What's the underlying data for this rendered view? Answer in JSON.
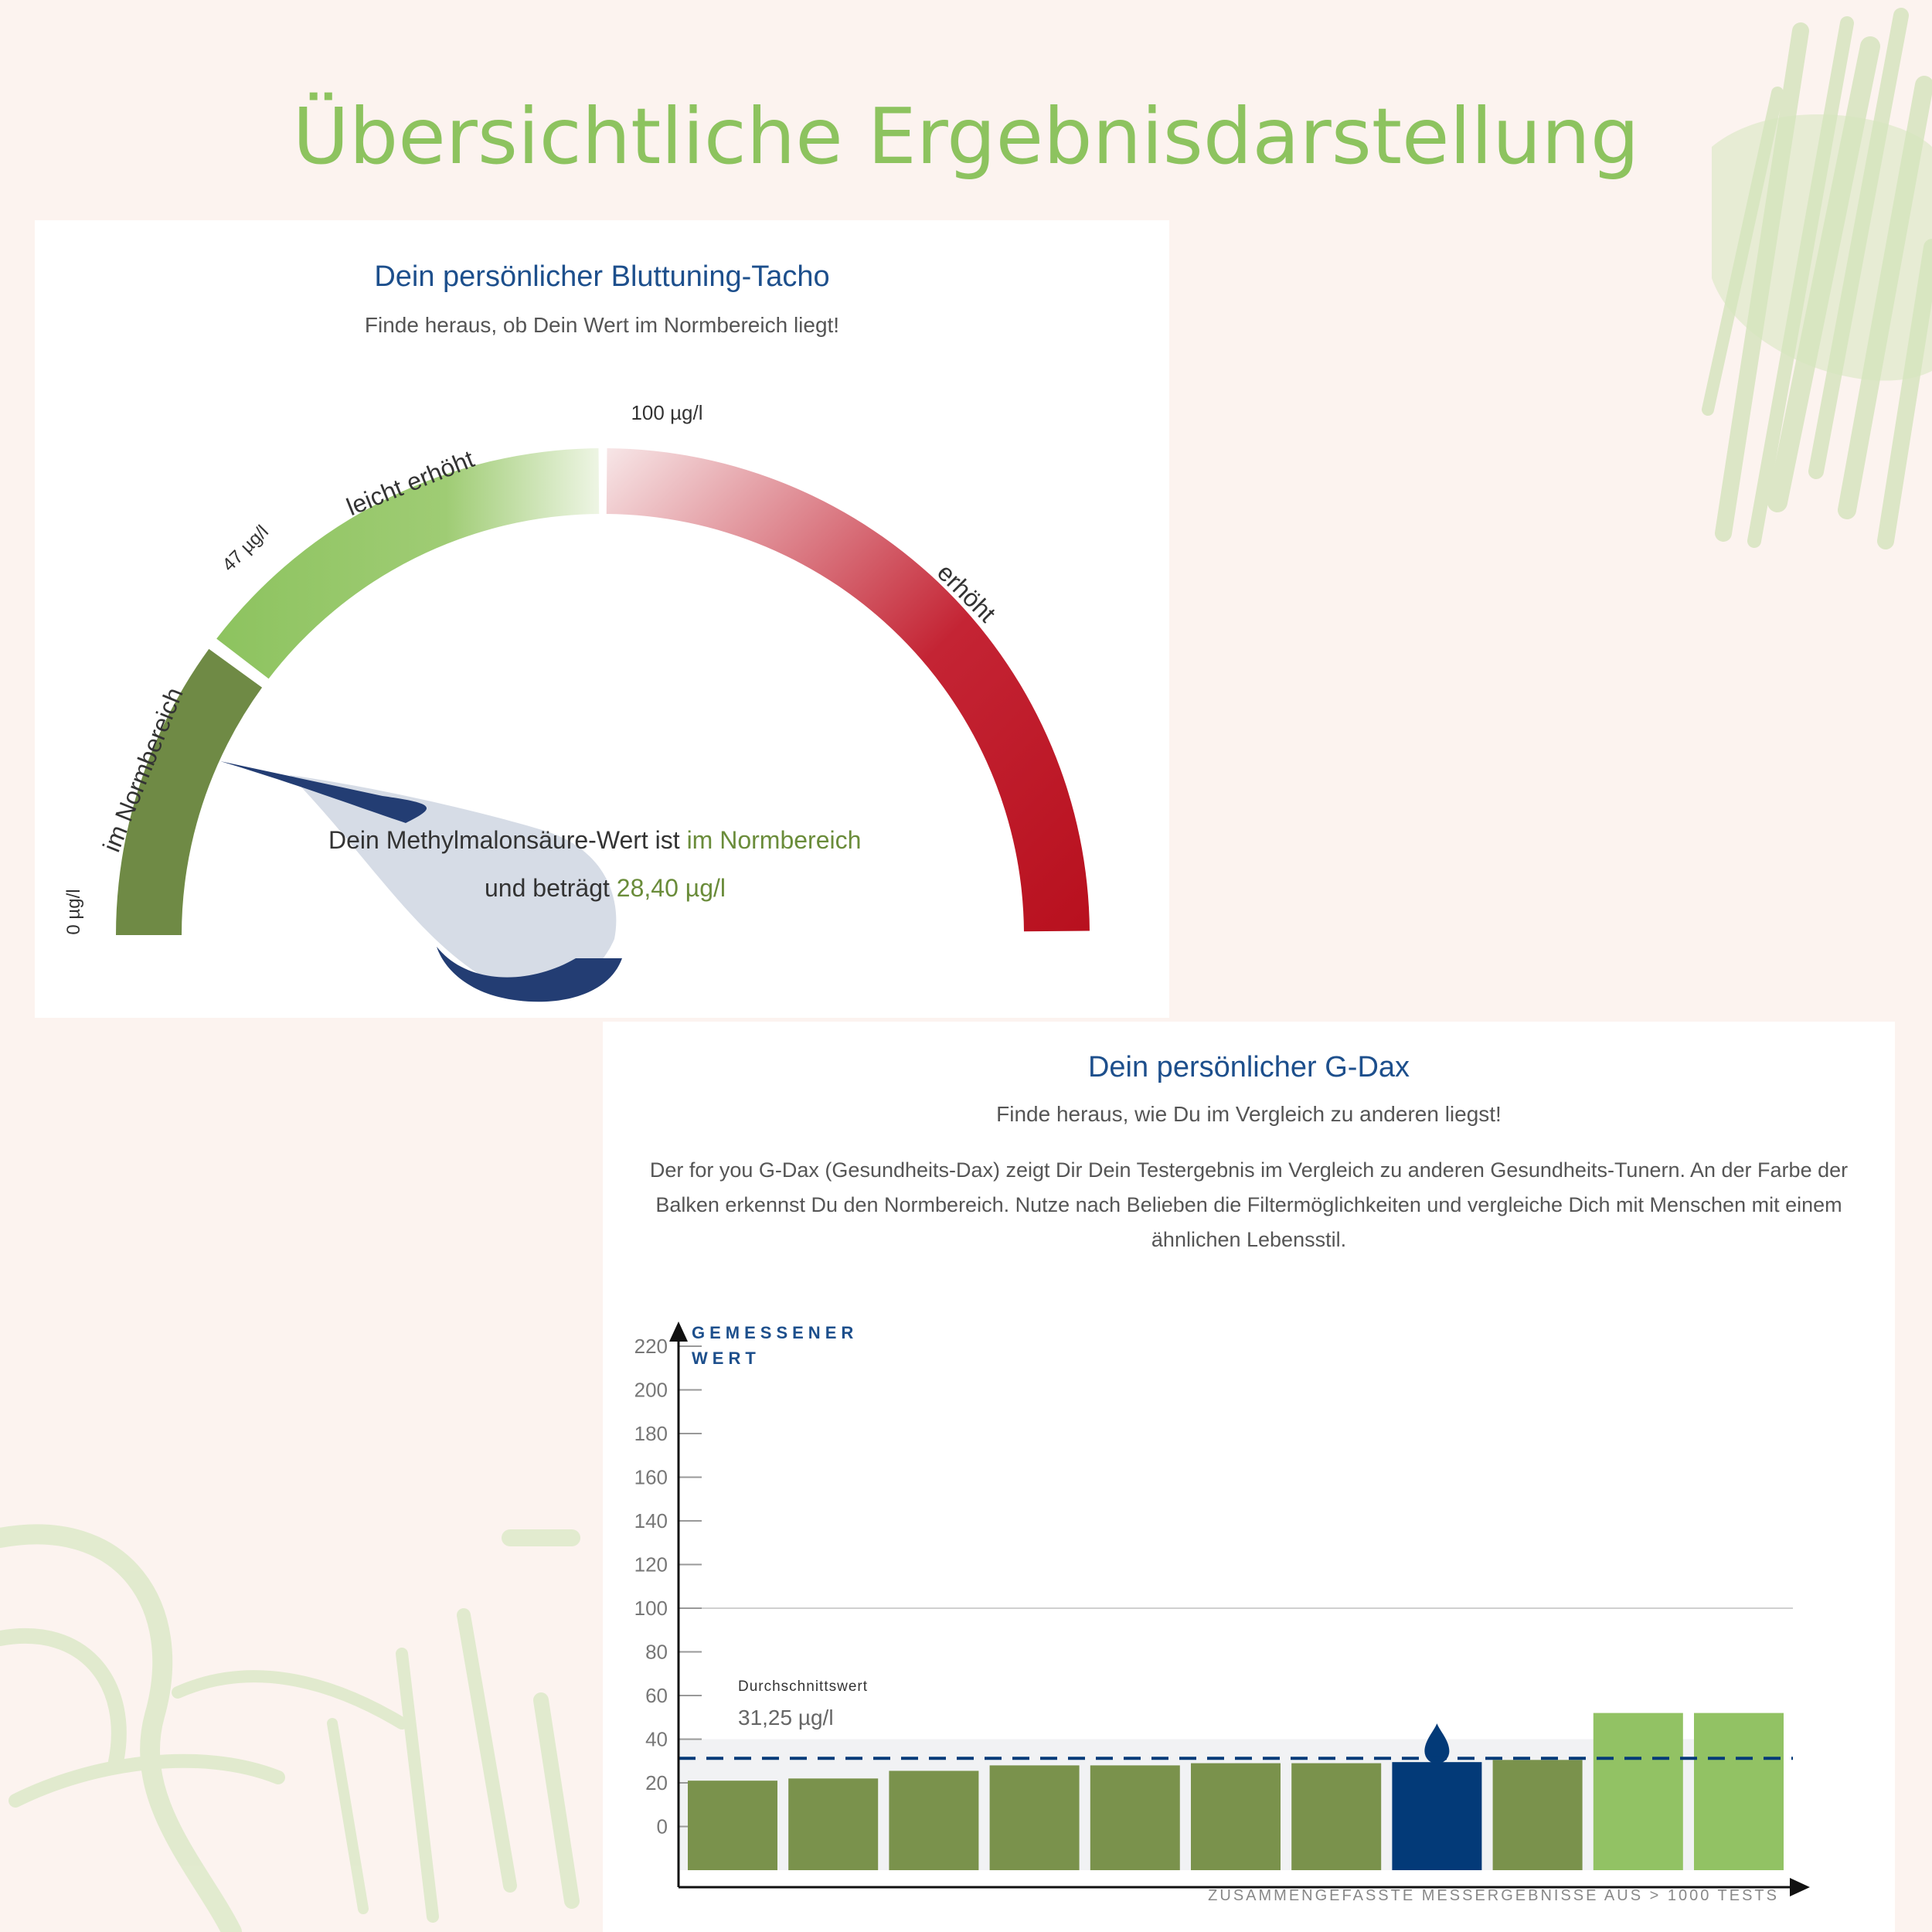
{
  "page_title": "Übersichtliche Ergebnisdarstellung",
  "tacho": {
    "title": "Dein persönlicher Bluttuning-Tacho",
    "subtitle": "Finde heraus, ob Dein Wert im Normbereich liegt!",
    "labels": {
      "zero": "0 µg/l",
      "mid": "47 µg/l",
      "max": "100 µg/l",
      "zone_normal": "im Normbereich",
      "zone_slight": "leicht erhöht",
      "zone_high": "erhöht"
    },
    "result": {
      "line1_prefix": "Dein Methylmalonsäure-Wert ist ",
      "line1_status": "im Normbereich",
      "line2_prefix": "und beträgt ",
      "line2_value": "28,40 µg/l"
    },
    "value": 28.4,
    "colors": {
      "normal": "#6f8a45",
      "slight": "#8dc35f",
      "high": "#b8101e",
      "needle": "#233d73",
      "bubble": "#d6dce6",
      "accent": "#6a8c3a"
    }
  },
  "gdax": {
    "title": "Dein persönlicher G-Dax",
    "subtitle": "Finde heraus, wie Du im Vergleich zu anderen liegst!",
    "description": "Der for you G-Dax (Gesundheits-Dax) zeigt Dir Dein Testergebnis im Vergleich zu anderen Gesundheits-Tunern. An der Farbe der Balken erkennst Du den Normbereich. Nutze nach Belieben die Filtermöglichkeiten und vergleiche Dich mit Menschen mit einem ähnlichen Lebensstil.",
    "y_label_line1": "GEMESSENER",
    "y_label_line2": "WERT",
    "x_label": "ZUSAMMENGEFASSTE MESSERGEBNISSE AUS > 1000 TESTS",
    "avg_label": "Durchschnittswert",
    "avg_value_text": "31,25 µg/l"
  },
  "chart_data": {
    "type": "bar",
    "title": "Dein persönlicher G-Dax",
    "ylabel": "GEMESSENER WERT",
    "xlabel": "ZUSAMMENGEFASSTE MESSERGEBNISSE AUS > 1000 TESTS",
    "y_ticks": [
      0,
      20,
      40,
      60,
      80,
      100,
      120,
      140,
      160,
      180,
      200,
      220
    ],
    "ylim": [
      -20,
      220
    ],
    "values": [
      21,
      22,
      25.5,
      28,
      28,
      29,
      29,
      29.5,
      30.5,
      52,
      52
    ],
    "bar_colors": [
      "#7a924c",
      "#7a924c",
      "#7a924c",
      "#7a924c",
      "#7a924c",
      "#7a924c",
      "#7a924c",
      "#033a78",
      "#7a924c",
      "#92c264",
      "#92c264"
    ],
    "highlight_index": 7,
    "reference_line": 100,
    "average": 31.25,
    "band": [
      -20,
      40
    ]
  }
}
